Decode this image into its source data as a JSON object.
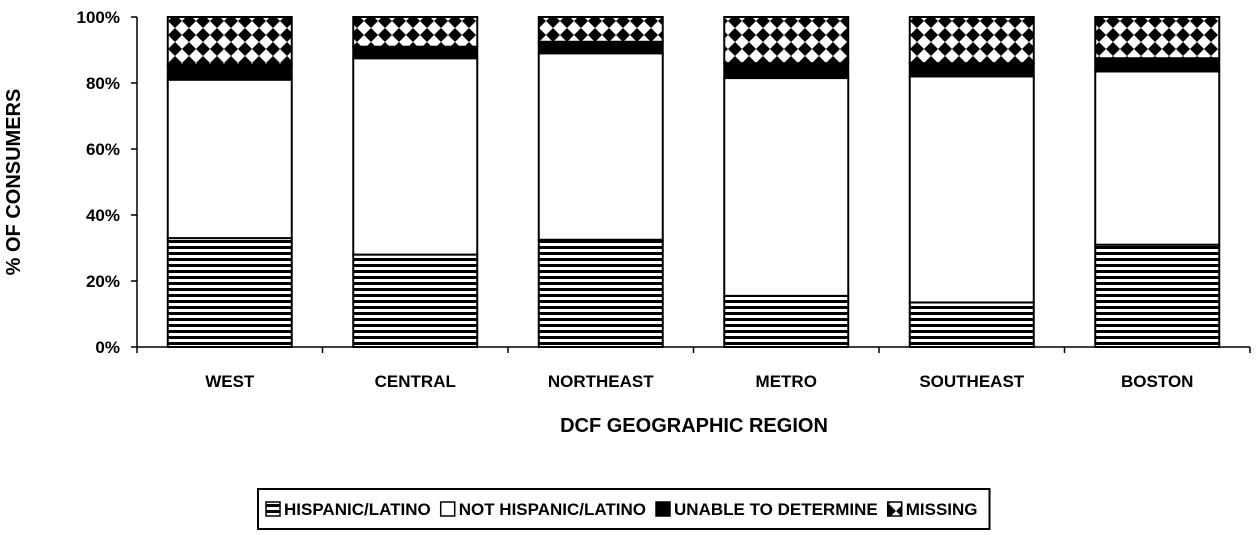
{
  "chart_data": {
    "type": "bar",
    "stacked": true,
    "percent": true,
    "categories": [
      "WEST",
      "CENTRAL",
      "NORTHEAST",
      "METRO",
      "SOUTHEAST",
      "BOSTON"
    ],
    "series": [
      {
        "name": "HISPANIC/LATINO",
        "values": [
          33,
          28,
          32.5,
          15.5,
          13.5,
          31
        ],
        "pattern": "hlines"
      },
      {
        "name": "NOT HISPANIC/LATINO",
        "values": [
          48,
          59.5,
          56.5,
          66,
          68.5,
          52.5
        ],
        "pattern": "white"
      },
      {
        "name": "UNABLE TO DETERMINE",
        "values": [
          4.5,
          3.5,
          3.5,
          4.5,
          4,
          4
        ],
        "pattern": "black"
      },
      {
        "name": "MISSING",
        "values": [
          14.5,
          9,
          7.5,
          14,
          14,
          12.5
        ],
        "pattern": "diamonds"
      }
    ],
    "xlabel": "DCF GEOGRAPHIC REGION",
    "ylabel": "% OF CONSUMERS",
    "ylim": [
      0,
      100
    ],
    "yticks": [
      "0%",
      "20%",
      "40%",
      "60%",
      "80%",
      "100%"
    ],
    "grid": false,
    "legend": "bottom"
  }
}
